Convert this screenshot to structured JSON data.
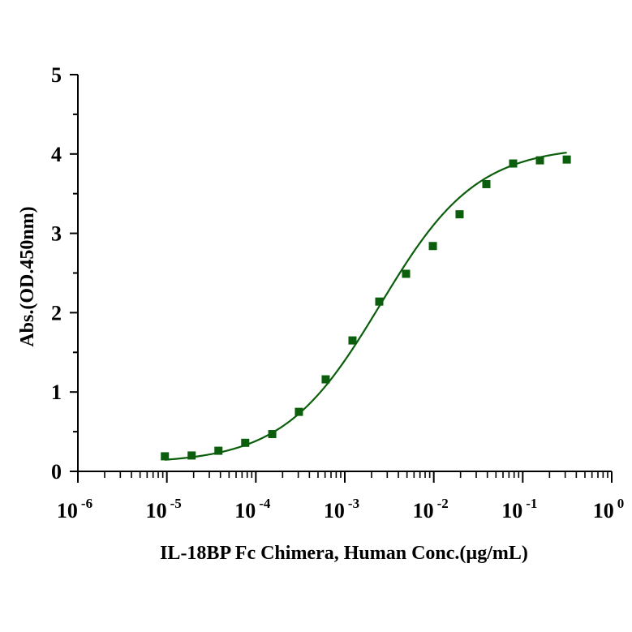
{
  "chart_data": {
    "type": "scatter",
    "title": "",
    "xlabel": "IL-18BP Fc Chimera, Human Conc.(µg/mL)",
    "ylabel": "Abs.(OD.450nm)",
    "x_scale": "log10",
    "xlim": [
      1e-06,
      1
    ],
    "ylim": [
      0,
      5
    ],
    "x_ticks": [
      {
        "base": "10",
        "exp": "-6"
      },
      {
        "base": "10",
        "exp": "-5"
      },
      {
        "base": "10",
        "exp": "-4"
      },
      {
        "base": "10",
        "exp": "-3"
      },
      {
        "base": "10",
        "exp": "-2"
      },
      {
        "base": "10",
        "exp": "-1"
      },
      {
        "base": "10",
        "exp": "0"
      }
    ],
    "y_ticks": [
      "0",
      "1",
      "2",
      "3",
      "4",
      "5"
    ],
    "grid": false,
    "marker_color": "#0b5e0b",
    "curve_color": "#0b5e0b",
    "series": [
      {
        "marker": "square",
        "x": [
          9.5e-06,
          1.9e-05,
          3.8e-05,
          7.6e-05,
          0.000153,
          0.000305,
          0.00061,
          0.00122,
          0.00244,
          0.00488,
          0.00977,
          0.0195,
          0.039,
          0.078,
          0.156,
          0.3125
        ],
        "y": [
          0.19,
          0.2,
          0.26,
          0.36,
          0.47,
          0.75,
          1.16,
          1.65,
          2.14,
          2.49,
          2.84,
          3.24,
          3.62,
          3.88,
          3.92,
          3.93
        ]
      }
    ],
    "fit": {
      "type": "4PL",
      "bottom": 0.1,
      "top": 4.1,
      "ec50": 0.0025,
      "hill": 0.8,
      "x_range": [
        9.5e-06,
        0.3125
      ]
    }
  }
}
